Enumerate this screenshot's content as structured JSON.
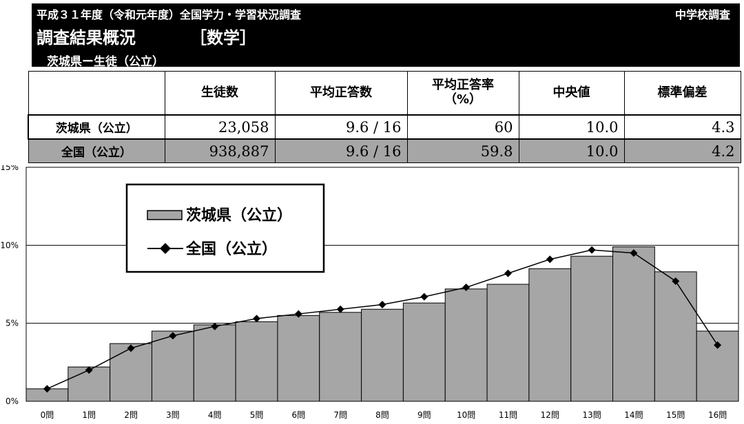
{
  "header": {
    "survey": "平成３１年度（令和元年度）全国学力・学習状況調査",
    "level": "中学校調査",
    "title": "調査結果概況",
    "subject": "［数学］",
    "scope": "茨城県ー生徒（公立）"
  },
  "table": {
    "columns": [
      "",
      "生徒数",
      "平均正答数",
      "平均正答率\n（%）",
      "中央値",
      "標準偏差"
    ],
    "rows": [
      {
        "label": "茨城県（公立）",
        "students": "23,058",
        "avg_correct": "9.6 / 16",
        "avg_rate": "60",
        "median": "10.0",
        "sd": "4.3"
      },
      {
        "label": "全国（公立）",
        "students": "938,887",
        "avg_correct": "9.6 / 16",
        "avg_rate": "59.8",
        "median": "10.0",
        "sd": "4.2"
      }
    ]
  },
  "colors": {
    "bar": "#a6a6a6",
    "line": "#000000",
    "header_bg": "#000000",
    "national_row": "#a6a6a6"
  },
  "chart_data": {
    "type": "bar",
    "categories": [
      "0問",
      "1問",
      "2問",
      "3問",
      "4問",
      "5問",
      "6問",
      "7問",
      "8問",
      "9問",
      "10問",
      "11問",
      "12問",
      "13問",
      "14問",
      "15問",
      "16問"
    ],
    "series": [
      {
        "name": "茨城県（公立）",
        "type": "bar",
        "values": [
          0.8,
          2.2,
          3.7,
          4.5,
          4.9,
          5.1,
          5.5,
          5.7,
          5.9,
          6.3,
          7.2,
          7.5,
          8.5,
          9.3,
          9.9,
          8.3,
          4.5
        ]
      },
      {
        "name": "全国（公立）",
        "type": "line",
        "values": [
          0.8,
          2.0,
          3.4,
          4.2,
          4.8,
          5.3,
          5.6,
          5.9,
          6.2,
          6.7,
          7.3,
          8.2,
          9.1,
          9.7,
          9.5,
          7.7,
          3.6
        ]
      }
    ],
    "yticks": [
      "0%",
      "5%",
      "10%",
      "15%"
    ],
    "ylim": [
      0,
      15
    ],
    "grid": true,
    "legend": "top-left"
  }
}
